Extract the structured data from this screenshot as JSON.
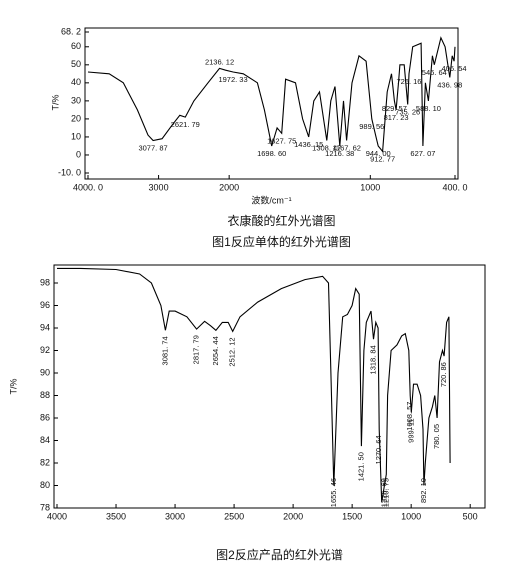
{
  "chart_data": [
    {
      "type": "line",
      "title": "衣康酸的红外光谱图",
      "caption": "图1反应单体的红外光谱图",
      "ylabel": "T/%",
      "xlabel": "波数/cm⁻¹",
      "color": "#000000",
      "x_break": 2000,
      "xlim": [
        4000,
        400
      ],
      "ylim": [
        -10,
        68.2
      ],
      "xticks": [
        {
          "value": 4000,
          "label": "4000. 0"
        },
        3000,
        2000,
        1000,
        {
          "value": 400,
          "label": "400. 0"
        }
      ],
      "yticks": [
        {
          "value": 68.2,
          "label": "68. 2"
        },
        60,
        50,
        40,
        30,
        20,
        10,
        0,
        {
          "value": -10,
          "label": "-10. 0"
        }
      ],
      "x": [
        4000,
        3700,
        3500,
        3300,
        3150,
        3077.87,
        2950,
        2800,
        2700,
        2621.79,
        2500,
        2300,
        2136.12,
        2050,
        1972.33,
        1900,
        1800,
        1750,
        1698.6,
        1660,
        1627.75,
        1600,
        1530,
        1480,
        1436.15,
        1400,
        1360,
        1308.47,
        1280,
        1250,
        1216.38,
        1190,
        1167.62,
        1130,
        1080,
        1030,
        989.56,
        960,
        944,
        912.77,
        880,
        850,
        829.57,
        817.23,
        800,
        790,
        760,
        735.26,
        726.16,
        700,
        640,
        627.07,
        610,
        588.1,
        560,
        546.64,
        500,
        470,
        436.98,
        420,
        406.54,
        400
      ],
      "values": [
        46,
        45,
        40,
        25,
        11,
        8,
        9,
        17,
        22,
        21,
        30,
        40,
        48,
        47,
        46,
        45,
        40,
        25,
        5,
        15,
        12,
        42,
        40,
        20,
        10,
        30,
        35,
        8,
        30,
        38,
        5,
        30,
        8,
        40,
        55,
        52,
        20,
        10,
        5,
        2,
        35,
        45,
        30,
        25,
        40,
        50,
        50,
        28,
        45,
        60,
        62,
        5,
        40,
        30,
        55,
        50,
        65,
        60,
        43,
        55,
        52,
        60
      ],
      "annotations": [
        {
          "label": "3077. 87",
          "x": 3077.87
        },
        {
          "label": "2621. 79",
          "x": 2621.79
        },
        {
          "label": "2136. 12",
          "x": 2136.12
        },
        {
          "label": "1972. 33",
          "x": 1972.33
        },
        {
          "label": "1698. 60",
          "x": 1698.6
        },
        {
          "label": "1627. 75",
          "x": 1627.75
        },
        {
          "label": "1436. 15",
          "x": 1436.15
        },
        {
          "label": "1308. 47",
          "x": 1308.47
        },
        {
          "label": "1216. 38",
          "x": 1216.38
        },
        {
          "label": "1167. 62",
          "x": 1167.62
        },
        {
          "label": "989. 56",
          "x": 989.56
        },
        {
          "label": "944. 00",
          "x": 944
        },
        {
          "label": "912. 77",
          "x": 912.77
        },
        {
          "label": "829. 57",
          "x": 829.57
        },
        {
          "label": "817. 23",
          "x": 817.23
        },
        {
          "label": "735. 26",
          "x": 735.26
        },
        {
          "label": "726. 16",
          "x": 726.16
        },
        {
          "label": "627. 07",
          "x": 627.07
        },
        {
          "label": "588. 10",
          "x": 588.1
        },
        {
          "label": "546. 64",
          "x": 546.64
        },
        {
          "label": "436. 98",
          "x": 436.98
        },
        {
          "label": "406. 54",
          "x": 406.54
        }
      ]
    },
    {
      "type": "line",
      "caption": "图2反应产品的红外光谱",
      "ylabel": "T/%",
      "color": "#000000",
      "xlim": [
        4000,
        400
      ],
      "ylim": [
        78,
        99.6
      ],
      "xticks": [
        4000,
        3500,
        3000,
        2500,
        2000,
        1500,
        1000,
        500
      ],
      "yticks": [
        78,
        80,
        82,
        84,
        86,
        88,
        90,
        92,
        94,
        96,
        98
      ],
      "x": [
        4000,
        3800,
        3500,
        3300,
        3200,
        3120,
        3081.74,
        3050,
        3000,
        2900,
        2817.79,
        2750,
        2700,
        2654.44,
        2600,
        2550,
        2512.12,
        2450,
        2300,
        2100,
        1900,
        1750,
        1700,
        1680,
        1655.46,
        1620,
        1580,
        1540,
        1500,
        1470,
        1440,
        1421.5,
        1400,
        1380,
        1340,
        1318.84,
        1300,
        1280,
        1270.64,
        1250,
        1226.69,
        1210.75,
        1200,
        1170,
        1120,
        1080,
        1050,
        1020,
        1008.57,
        999.11,
        980,
        950,
        920,
        900,
        892.1,
        880,
        850,
        820,
        800,
        780.05,
        760,
        735,
        720.86,
        700,
        680,
        670
      ],
      "values": [
        99.3,
        99.3,
        99.2,
        98.8,
        98,
        96,
        93.8,
        95.5,
        95.5,
        95,
        93.9,
        94.6,
        94.2,
        93.8,
        94.5,
        94.5,
        93.7,
        95,
        96.3,
        97.5,
        98.3,
        98.6,
        98,
        90,
        80,
        90,
        95,
        95.2,
        96,
        97.5,
        97,
        83.5,
        92,
        94.5,
        95.5,
        93,
        94.5,
        94,
        85,
        78.5,
        80,
        81,
        88,
        92,
        92.5,
        93.3,
        93.5,
        92,
        88,
        86.5,
        89,
        89,
        88,
        85,
        80,
        82,
        86,
        87,
        88,
        86,
        91,
        92,
        91.5,
        94.5,
        95,
        82
      ],
      "annotations": [
        {
          "label": "3081. 74",
          "x": 3081.74
        },
        {
          "label": "2817. 79",
          "x": 2817.79
        },
        {
          "label": "2654. 44",
          "x": 2654.44
        },
        {
          "label": "2512. 12",
          "x": 2512.12
        },
        {
          "label": "1655. 46",
          "x": 1655.46
        },
        {
          "label": "1421. 50",
          "x": 1421.5
        },
        {
          "label": "1318. 84",
          "x": 1318.84
        },
        {
          "label": "1270. 64",
          "x": 1270.64
        },
        {
          "label": "1226. 69",
          "x": 1226.69
        },
        {
          "label": "1210. 75",
          "x": 1210.75
        },
        {
          "label": "1008. 57",
          "x": 1008.57
        },
        {
          "label": "999. 11",
          "x": 999.11
        },
        {
          "label": "892. 10",
          "x": 892.1
        },
        {
          "label": "780. 05",
          "x": 780.05
        },
        {
          "label": "720. 86",
          "x": 720.86
        }
      ]
    }
  ]
}
